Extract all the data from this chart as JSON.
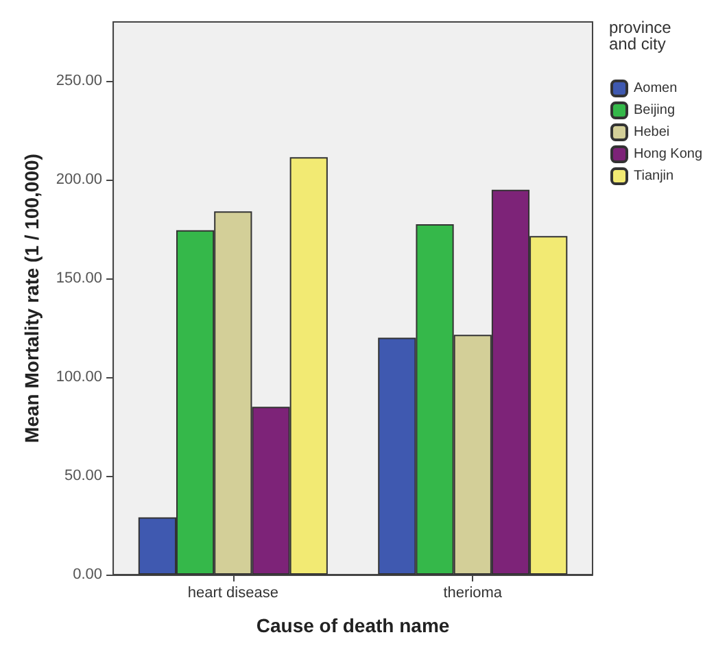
{
  "chart_data": {
    "type": "bar",
    "xlabel": "Cause of death name",
    "ylabel": "Mean Mortality rate (1 / 100,000)",
    "legend_title": "province\nand city",
    "categories": [
      "heart disease",
      "therioma"
    ],
    "series": [
      {
        "name": "Aomen",
        "color": "#3f59b0",
        "values": [
          29,
          120
        ]
      },
      {
        "name": "Beijing",
        "color": "#35b84a",
        "values": [
          174.5,
          177.5
        ]
      },
      {
        "name": "Hebei",
        "color": "#d3cf98",
        "values": [
          184,
          121.5
        ]
      },
      {
        "name": "Hong Kong",
        "color": "#7d2378",
        "values": [
          85,
          195
        ]
      },
      {
        "name": "Tianjin",
        "color": "#f2ea73",
        "values": [
          211.5,
          171.5
        ]
      }
    ],
    "ylim": [
      0,
      280
    ],
    "yticks": [
      {
        "value": 0,
        "label": "0.00"
      },
      {
        "value": 50,
        "label": "50.00"
      },
      {
        "value": 100,
        "label": "100.00"
      },
      {
        "value": 150,
        "label": "150.00"
      },
      {
        "value": 200,
        "label": "200.00"
      },
      {
        "value": 250,
        "label": "250.00"
      }
    ],
    "grid": false,
    "legend": "right"
  }
}
